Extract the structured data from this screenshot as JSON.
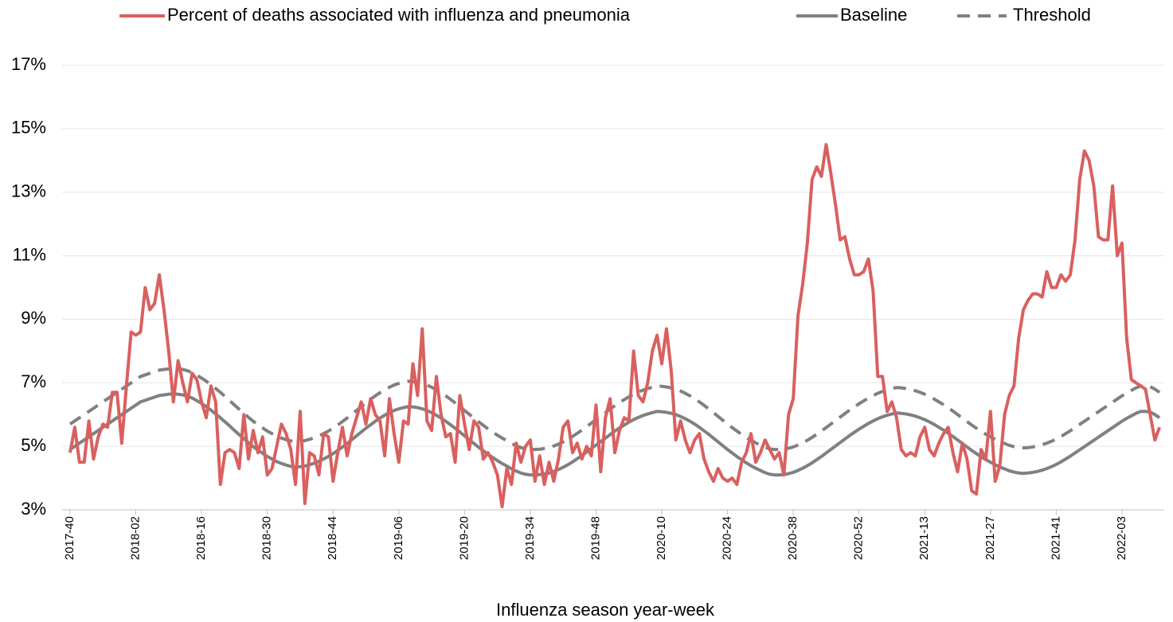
{
  "chart_data": {
    "type": "line",
    "xlabel": "Influenza season year-week",
    "categories": [
      "2017-40",
      null,
      null,
      null,
      null,
      null,
      null,
      null,
      null,
      null,
      null,
      null,
      null,
      null,
      "2018-02",
      null,
      null,
      null,
      null,
      null,
      null,
      null,
      null,
      null,
      null,
      null,
      null,
      null,
      "2018-16",
      null,
      null,
      null,
      null,
      null,
      null,
      null,
      null,
      null,
      null,
      null,
      null,
      null,
      "2018-30",
      null,
      null,
      null,
      null,
      null,
      null,
      null,
      null,
      null,
      null,
      null,
      null,
      null,
      "2018-44",
      null,
      null,
      null,
      null,
      null,
      null,
      null,
      null,
      null,
      null,
      null,
      null,
      null,
      "2019-06",
      null,
      null,
      null,
      null,
      null,
      null,
      null,
      null,
      null,
      null,
      null,
      null,
      null,
      "2019-20",
      null,
      null,
      null,
      null,
      null,
      null,
      null,
      null,
      null,
      null,
      null,
      null,
      null,
      "2019-34",
      null,
      null,
      null,
      null,
      null,
      null,
      null,
      null,
      null,
      null,
      null,
      null,
      null,
      "2019-48",
      null,
      null,
      null,
      null,
      null,
      null,
      null,
      null,
      null,
      null,
      null,
      null,
      null,
      "2020-10",
      null,
      null,
      null,
      null,
      null,
      null,
      null,
      null,
      null,
      null,
      null,
      null,
      null,
      "2020-24",
      null,
      null,
      null,
      null,
      null,
      null,
      null,
      null,
      null,
      null,
      null,
      null,
      null,
      "2020-38",
      null,
      null,
      null,
      null,
      null,
      null,
      null,
      null,
      null,
      null,
      null,
      null,
      null,
      "2020-52",
      null,
      null,
      null,
      null,
      null,
      null,
      null,
      null,
      null,
      null,
      null,
      null,
      null,
      "2021-13",
      null,
      null,
      null,
      null,
      null,
      null,
      null,
      null,
      null,
      null,
      null,
      null,
      null,
      "2021-27",
      null,
      null,
      null,
      null,
      null,
      null,
      null,
      null,
      null,
      null,
      null,
      null,
      null,
      "2021-41",
      null,
      null,
      null,
      null,
      null,
      null,
      null,
      null,
      null,
      null,
      null,
      null,
      null,
      "2022-03",
      null,
      null,
      null,
      null,
      null,
      null,
      null,
      null
    ],
    "series": [
      {
        "name": "Percent of deaths associated with influenza and pneumonia",
        "color": "#d9605f",
        "dash": false,
        "values": [
          4.8,
          5.6,
          4.5,
          4.5,
          5.8,
          4.6,
          5.3,
          5.7,
          5.6,
          6.7,
          6.7,
          5.1,
          6.9,
          8.6,
          8.5,
          8.6,
          10.0,
          9.3,
          9.5,
          10.4,
          9.3,
          8.0,
          6.4,
          7.7,
          7.0,
          6.4,
          7.3,
          7.1,
          6.4,
          5.9,
          6.9,
          6.4,
          3.8,
          4.8,
          4.9,
          4.8,
          4.3,
          6.0,
          4.6,
          5.5,
          4.8,
          5.3,
          4.1,
          4.3,
          5.0,
          5.7,
          5.4,
          4.9,
          3.8,
          6.1,
          3.2,
          4.8,
          4.7,
          4.1,
          5.4,
          5.3,
          3.9,
          4.8,
          5.6,
          4.7,
          5.4,
          5.9,
          6.4,
          5.7,
          6.5,
          6.0,
          5.8,
          4.7,
          6.5,
          5.4,
          4.5,
          5.8,
          5.7,
          7.6,
          6.6,
          8.7,
          5.8,
          5.5,
          7.2,
          6.0,
          5.3,
          5.4,
          4.5,
          6.6,
          5.7,
          4.9,
          5.8,
          5.6,
          4.6,
          4.8,
          4.5,
          4.1,
          3.1,
          4.3,
          3.8,
          5.1,
          4.5,
          5.0,
          5.2,
          3.9,
          4.7,
          3.8,
          4.5,
          3.9,
          4.6,
          5.6,
          5.8,
          4.8,
          5.1,
          4.6,
          5.0,
          4.7,
          6.3,
          4.2,
          5.9,
          6.5,
          4.8,
          5.5,
          5.9,
          5.8,
          8.0,
          6.6,
          6.4,
          7.0,
          8.0,
          8.5,
          7.6,
          8.7,
          7.4,
          5.2,
          5.8,
          5.2,
          4.8,
          5.2,
          5.4,
          4.6,
          4.2,
          3.9,
          4.3,
          4.0,
          3.9,
          4.0,
          3.8,
          4.5,
          4.8,
          5.4,
          4.5,
          4.8,
          5.2,
          4.9,
          4.6,
          4.8,
          4.1,
          6.0,
          6.5,
          9.1,
          10.1,
          11.4,
          13.4,
          13.8,
          13.5,
          14.5,
          13.6,
          12.6,
          11.5,
          11.6,
          10.9,
          10.4,
          10.4,
          10.5,
          10.9,
          9.9,
          7.2,
          7.2,
          6.1,
          6.4,
          5.9,
          4.9,
          4.7,
          4.8,
          4.7,
          5.3,
          5.6,
          4.9,
          4.7,
          5.1,
          5.4,
          5.6,
          4.8,
          4.2,
          5.1,
          4.6,
          3.6,
          3.5,
          4.9,
          4.6,
          6.1,
          3.9,
          4.4,
          6.0,
          6.6,
          6.9,
          8.4,
          9.3,
          9.6,
          9.8,
          9.8,
          9.7,
          10.5,
          10.0,
          10.0,
          10.4,
          10.2,
          10.4,
          11.5,
          13.4,
          14.3,
          14.0,
          13.2,
          11.6,
          11.5,
          11.5,
          13.2,
          11.0,
          11.4,
          8.4,
          7.1,
          7.0,
          6.9,
          6.8,
          6.0,
          5.2,
          5.6
        ]
      },
      {
        "name": "Baseline",
        "color": "#808080",
        "dash": false,
        "values": [
          4.9,
          5.0,
          5.1,
          5.2,
          5.3,
          5.4,
          5.5,
          5.6,
          5.7,
          5.8,
          5.9,
          6.0,
          6.1,
          6.2,
          6.3,
          6.4,
          6.45,
          6.5,
          6.55,
          6.6,
          6.62,
          6.64,
          6.65,
          6.64,
          6.62,
          6.58,
          6.52,
          6.44,
          6.35,
          6.25,
          6.14,
          6.02,
          5.9,
          5.77,
          5.64,
          5.5,
          5.37,
          5.24,
          5.11,
          4.99,
          4.88,
          4.78,
          4.68,
          4.6,
          4.52,
          4.46,
          4.41,
          4.37,
          4.35,
          4.36,
          4.38,
          4.42,
          4.47,
          4.53,
          4.6,
          4.68,
          4.77,
          4.87,
          4.98,
          5.09,
          5.21,
          5.33,
          5.45,
          5.57,
          5.68,
          5.79,
          5.89,
          5.98,
          6.06,
          6.13,
          6.18,
          6.22,
          6.25,
          6.24,
          6.22,
          6.18,
          6.13,
          6.06,
          5.98,
          5.89,
          5.79,
          5.68,
          5.57,
          5.45,
          5.33,
          5.21,
          5.09,
          4.97,
          4.86,
          4.75,
          4.65,
          4.55,
          4.46,
          4.38,
          4.29,
          4.22,
          4.16,
          4.12,
          4.1,
          4.1,
          4.11,
          4.13,
          4.16,
          4.21,
          4.27,
          4.34,
          4.42,
          4.51,
          4.61,
          4.71,
          4.82,
          4.93,
          5.04,
          5.15,
          5.26,
          5.37,
          5.48,
          5.58,
          5.67,
          5.76,
          5.84,
          5.91,
          5.97,
          6.02,
          6.06,
          6.1,
          6.09,
          6.07,
          6.04,
          6.0,
          5.94,
          5.87,
          5.79,
          5.7,
          5.6,
          5.49,
          5.38,
          5.26,
          5.14,
          5.02,
          4.9,
          4.79,
          4.68,
          4.58,
          4.48,
          4.39,
          4.31,
          4.24,
          4.17,
          4.12,
          4.1,
          4.1,
          4.11,
          4.14,
          4.18,
          4.24,
          4.31,
          4.39,
          4.48,
          4.58,
          4.68,
          4.79,
          4.9,
          5.01,
          5.12,
          5.23,
          5.34,
          5.44,
          5.54,
          5.63,
          5.72,
          5.8,
          5.87,
          5.93,
          5.98,
          6.02,
          6.05,
          6.04,
          6.02,
          5.99,
          5.95,
          5.9,
          5.84,
          5.77,
          5.69,
          5.6,
          5.51,
          5.41,
          5.31,
          5.2,
          5.09,
          4.98,
          4.87,
          4.77,
          4.67,
          4.58,
          4.5,
          4.42,
          4.35,
          4.29,
          4.23,
          4.19,
          4.16,
          4.15,
          4.16,
          4.18,
          4.21,
          4.25,
          4.3,
          4.36,
          4.43,
          4.51,
          4.6,
          4.69,
          4.79,
          4.89,
          4.99,
          5.09,
          5.19,
          5.29,
          5.39,
          5.49,
          5.59,
          5.69,
          5.79,
          5.88,
          5.96,
          6.04,
          6.1,
          6.1,
          6.08,
          6.0,
          5.9
        ]
      },
      {
        "name": "Threshold",
        "color": "#808080",
        "dash": true,
        "values": [
          5.7,
          5.8,
          5.9,
          6.0,
          6.1,
          6.2,
          6.3,
          6.4,
          6.5,
          6.6,
          6.7,
          6.8,
          6.9,
          7.0,
          7.1,
          7.2,
          7.25,
          7.3,
          7.35,
          7.4,
          7.42,
          7.44,
          7.45,
          7.44,
          7.42,
          7.38,
          7.32,
          7.24,
          7.15,
          7.05,
          6.94,
          6.82,
          6.7,
          6.57,
          6.44,
          6.3,
          6.17,
          6.04,
          5.91,
          5.79,
          5.68,
          5.58,
          5.48,
          5.4,
          5.32,
          5.26,
          5.21,
          5.17,
          5.15,
          5.16,
          5.18,
          5.22,
          5.27,
          5.33,
          5.4,
          5.48,
          5.57,
          5.67,
          5.78,
          5.89,
          6.01,
          6.13,
          6.25,
          6.37,
          6.48,
          6.59,
          6.69,
          6.78,
          6.86,
          6.93,
          6.98,
          7.02,
          7.05,
          7.04,
          7.02,
          6.98,
          6.93,
          6.86,
          6.78,
          6.69,
          6.59,
          6.48,
          6.37,
          6.25,
          6.13,
          6.01,
          5.89,
          5.77,
          5.66,
          5.55,
          5.45,
          5.35,
          5.26,
          5.18,
          5.09,
          5.02,
          4.96,
          4.92,
          4.9,
          4.9,
          4.91,
          4.93,
          4.96,
          5.01,
          5.07,
          5.14,
          5.22,
          5.31,
          5.41,
          5.51,
          5.62,
          5.73,
          5.84,
          5.95,
          6.06,
          6.17,
          6.28,
          6.38,
          6.47,
          6.56,
          6.64,
          6.71,
          6.77,
          6.82,
          6.86,
          6.9,
          6.89,
          6.87,
          6.84,
          6.8,
          6.74,
          6.67,
          6.59,
          6.5,
          6.4,
          6.29,
          6.18,
          6.06,
          5.94,
          5.82,
          5.7,
          5.59,
          5.48,
          5.38,
          5.28,
          5.19,
          5.11,
          5.04,
          4.97,
          4.92,
          4.9,
          4.9,
          4.91,
          4.94,
          4.98,
          5.04,
          5.11,
          5.19,
          5.28,
          5.38,
          5.48,
          5.59,
          5.7,
          5.81,
          5.92,
          6.03,
          6.14,
          6.24,
          6.34,
          6.43,
          6.52,
          6.6,
          6.67,
          6.73,
          6.78,
          6.82,
          6.85,
          6.84,
          6.82,
          6.79,
          6.75,
          6.7,
          6.64,
          6.57,
          6.49,
          6.4,
          6.31,
          6.21,
          6.11,
          6.0,
          5.89,
          5.78,
          5.67,
          5.57,
          5.47,
          5.38,
          5.3,
          5.22,
          5.15,
          5.09,
          5.03,
          4.99,
          4.96,
          4.95,
          4.96,
          4.98,
          5.01,
          5.05,
          5.1,
          5.16,
          5.23,
          5.31,
          5.4,
          5.49,
          5.59,
          5.69,
          5.79,
          5.89,
          5.99,
          6.09,
          6.19,
          6.29,
          6.39,
          6.49,
          6.59,
          6.68,
          6.76,
          6.84,
          6.9,
          6.9,
          6.88,
          6.8,
          6.7
        ]
      }
    ],
    "ylim": [
      3,
      17
    ],
    "yticks": [
      {
        "value": 3,
        "label": "3%"
      },
      {
        "value": 5,
        "label": "5%"
      },
      {
        "value": 7,
        "label": "7%"
      },
      {
        "value": 9,
        "label": "9%"
      },
      {
        "value": 11,
        "label": "11%"
      },
      {
        "value": 13,
        "label": "13%"
      },
      {
        "value": 15,
        "label": "15%"
      },
      {
        "value": 17,
        "label": "17%"
      }
    ],
    "grid": true,
    "legend": "top"
  }
}
